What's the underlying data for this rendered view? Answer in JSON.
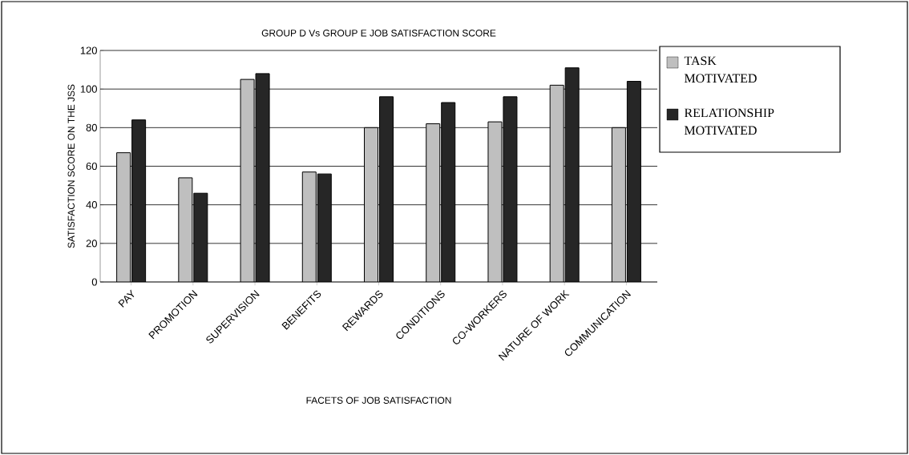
{
  "chart_data": {
    "type": "bar",
    "title": "GROUP D Vs GROUP E JOB SATISFACTION SCORE",
    "xlabel": "FACETS OF JOB SATISFACTION",
    "ylabel": "SATISFACTION SCORE ON THE JSS",
    "categories": [
      "PAY",
      "PROMOTION",
      "SUPERVISION",
      "BENEFITS",
      "REWARDS",
      "CONDITIONS",
      "CO-WORKERS",
      "NATURE OF WORK",
      "COMMUNICATION"
    ],
    "series": [
      {
        "name": "TASK MOTIVATED",
        "color": "#bfbfbf",
        "values": [
          67,
          54,
          105,
          57,
          80,
          82,
          83,
          102,
          80
        ]
      },
      {
        "name": "RELATIONSHIP MOTIVATED",
        "color": "#262626",
        "values": [
          84,
          46,
          108,
          56,
          96,
          93,
          96,
          111,
          104
        ]
      }
    ],
    "ylim": [
      0,
      120
    ],
    "yticks": [
      0,
      20,
      40,
      60,
      80,
      100,
      120
    ],
    "grid": "y",
    "legend": "top right"
  }
}
